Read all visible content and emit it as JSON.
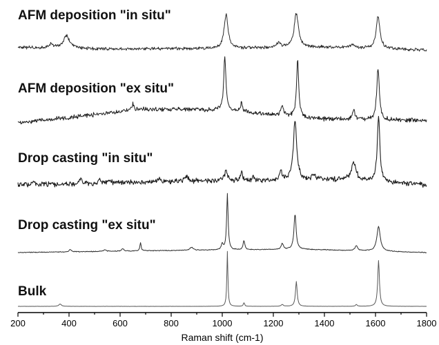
{
  "chart_data": {
    "type": "line",
    "title": "",
    "xlabel": "Raman shift (cm-1)",
    "ylabel": "",
    "xlim": [
      200,
      1800
    ],
    "xticks": [
      200,
      400,
      600,
      800,
      1000,
      1200,
      1400,
      1600,
      1800
    ],
    "grid": false,
    "y_axis_shown": false,
    "series": [
      {
        "name": "AFM deposition \"in situ\"",
        "color": "#2a2a2a",
        "noise": 0.06,
        "baseline": [
          [
            200,
            0.02
          ],
          [
            600,
            -0.02
          ],
          [
            1000,
            0.0
          ],
          [
            1400,
            0.03
          ],
          [
            1800,
            -0.05
          ]
        ],
        "peaks": [
          {
            "x": 330,
            "height": 0.1,
            "width": 10
          },
          {
            "x": 390,
            "height": 0.33,
            "width": 14
          },
          {
            "x": 1015,
            "height": 0.9,
            "width": 9
          },
          {
            "x": 1220,
            "height": 0.12,
            "width": 10
          },
          {
            "x": 1290,
            "height": 0.9,
            "width": 10
          },
          {
            "x": 1510,
            "height": 0.1,
            "width": 10
          },
          {
            "x": 1610,
            "height": 0.85,
            "width": 9
          }
        ]
      },
      {
        "name": "AFM deposition \"ex situ\"",
        "color": "#1c1c1c",
        "noise": 0.07,
        "baseline": [
          [
            200,
            0.0
          ],
          [
            700,
            0.3
          ],
          [
            1000,
            0.28
          ],
          [
            1400,
            0.08
          ],
          [
            1800,
            0.05
          ]
        ],
        "peaks": [
          {
            "x": 650,
            "height": 0.15,
            "width": 5
          },
          {
            "x": 1010,
            "height": 1.2,
            "width": 5
          },
          {
            "x": 1075,
            "height": 0.2,
            "width": 4
          },
          {
            "x": 1235,
            "height": 0.25,
            "width": 5
          },
          {
            "x": 1295,
            "height": 1.25,
            "width": 5
          },
          {
            "x": 1515,
            "height": 0.2,
            "width": 6
          },
          {
            "x": 1610,
            "height": 1.15,
            "width": 6
          }
        ]
      },
      {
        "name": "Drop casting \"in situ\"",
        "color": "#1c1c1c",
        "noise": 0.08,
        "baseline": [
          [
            200,
            0.0
          ],
          [
            900,
            0.08
          ],
          [
            1200,
            0.1
          ],
          [
            1500,
            0.12
          ],
          [
            1800,
            0.0
          ]
        ],
        "peaks": [
          {
            "x": 260,
            "height": 0.1,
            "width": 6
          },
          {
            "x": 445,
            "height": 0.12,
            "width": 5
          },
          {
            "x": 520,
            "height": 0.08,
            "width": 6
          },
          {
            "x": 560,
            "height": 0.08,
            "width": 6
          },
          {
            "x": 750,
            "height": 0.08,
            "width": 5
          },
          {
            "x": 860,
            "height": 0.1,
            "width": 10
          },
          {
            "x": 1015,
            "height": 0.24,
            "width": 7
          },
          {
            "x": 1075,
            "height": 0.18,
            "width": 5
          },
          {
            "x": 1120,
            "height": 0.1,
            "width": 4
          },
          {
            "x": 1230,
            "height": 0.18,
            "width": 6
          },
          {
            "x": 1285,
            "height": 1.3,
            "width": 8
          },
          {
            "x": 1360,
            "height": 0.1,
            "width": 8
          },
          {
            "x": 1515,
            "height": 0.38,
            "width": 10
          },
          {
            "x": 1612,
            "height": 1.45,
            "width": 6
          }
        ]
      },
      {
        "name": "Drop casting \"ex situ\"",
        "color": "#2a2a2a",
        "noise": 0.015,
        "baseline": [
          [
            200,
            0.0
          ],
          [
            800,
            0.05
          ],
          [
            1300,
            0.08
          ],
          [
            1800,
            0.0
          ]
        ],
        "peaks": [
          {
            "x": 405,
            "height": 0.06,
            "width": 5
          },
          {
            "x": 540,
            "height": 0.04,
            "width": 6
          },
          {
            "x": 610,
            "height": 0.06,
            "width": 5
          },
          {
            "x": 680,
            "height": 0.2,
            "width": 3
          },
          {
            "x": 880,
            "height": 0.07,
            "width": 8
          },
          {
            "x": 1000,
            "height": 0.15,
            "width": 4
          },
          {
            "x": 1020,
            "height": 1.35,
            "width": 3.5
          },
          {
            "x": 1085,
            "height": 0.22,
            "width": 4
          },
          {
            "x": 1235,
            "height": 0.14,
            "width": 5
          },
          {
            "x": 1285,
            "height": 0.85,
            "width": 5
          },
          {
            "x": 1525,
            "height": 0.12,
            "width": 6
          },
          {
            "x": 1612,
            "height": 0.6,
            "width": 8
          }
        ]
      },
      {
        "name": "Bulk",
        "color": "#555555",
        "noise": 0.004,
        "baseline": [
          [
            200,
            0.0
          ],
          [
            1800,
            0.0
          ]
        ],
        "peaks": [
          {
            "x": 365,
            "height": 0.09,
            "width": 6
          },
          {
            "x": 1020,
            "height": 2.1,
            "width": 2.5
          },
          {
            "x": 1085,
            "height": 0.14,
            "width": 3
          },
          {
            "x": 1235,
            "height": 0.07,
            "width": 5
          },
          {
            "x": 1290,
            "height": 0.95,
            "width": 4
          },
          {
            "x": 1525,
            "height": 0.07,
            "width": 4
          },
          {
            "x": 1612,
            "height": 1.75,
            "width": 4
          }
        ]
      }
    ]
  }
}
